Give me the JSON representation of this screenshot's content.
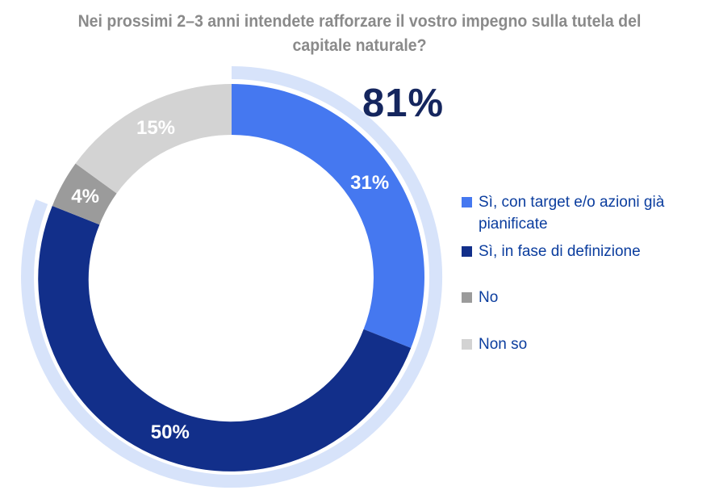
{
  "chart_data": {
    "type": "donut",
    "title": "Nei prossimi 2–3 anni intendete rafforzare il vostro impegno sulla tutela del capitale naturale?",
    "title_lines": [
      "Nei prossimi 2–3 anni intendete rafforzare il vostro impegno sulla tutela del",
      "capitale naturale?"
    ],
    "start_angle_deg": 0,
    "direction": "clockwise",
    "legend_position": "right",
    "slices": [
      {
        "label": "Sì, con target e/o azioni già pianificate",
        "value": 31,
        "percent_label": "31%",
        "color": "#4578F0"
      },
      {
        "label": "Sì, in fase di definizione",
        "value": 50,
        "percent_label": "50%",
        "color": "#122F8A"
      },
      {
        "label": "No",
        "value": 4,
        "percent_label": "4%",
        "color": "#9B9B9B"
      },
      {
        "label": "Non so",
        "value": 15,
        "percent_label": "15%",
        "color": "#D3D3D3"
      }
    ],
    "callout": {
      "text": "81%",
      "covers_percent": 81,
      "color": "#15265E"
    },
    "highlight_arc": {
      "percent": 81,
      "color": "#D7E3FA"
    },
    "colors": {
      "title": "#8A8A8A",
      "legend_text": "#0B3D9E",
      "percent_label_text": "#FFFFFF",
      "background": "#FFFFFF"
    }
  }
}
